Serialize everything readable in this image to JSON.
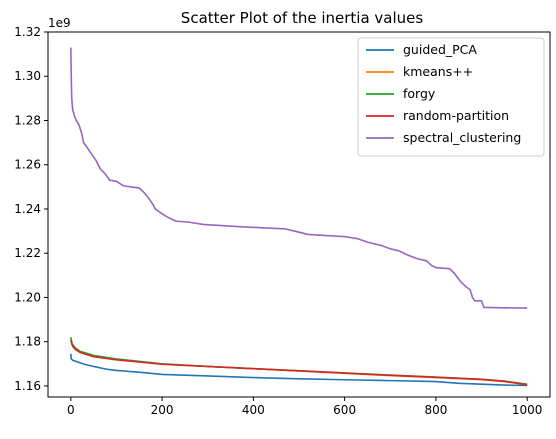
{
  "chart_data": {
    "type": "line",
    "title": "Scatter Plot of the inertia values",
    "xlabel": "",
    "ylabel": "",
    "y_offset_label": "1e9",
    "xlim": [
      -50,
      1050
    ],
    "ylim": [
      1.155,
      1.32
    ],
    "x_ticks": [
      0,
      200,
      400,
      600,
      800,
      1000
    ],
    "y_ticks": [
      1.16,
      1.18,
      1.2,
      1.22,
      1.24,
      1.26,
      1.28,
      1.3,
      1.32
    ],
    "y_tick_labels": [
      "1.16",
      "1.18",
      "1.20",
      "1.22",
      "1.24",
      "1.26",
      "1.28",
      "1.30",
      "1.32"
    ],
    "grid": false,
    "legend_position": "upper right",
    "series": [
      {
        "name": "guided_PCA",
        "color": "#1f77b4",
        "points": [
          [
            0,
            1.1745
          ],
          [
            1,
            1.1722
          ],
          [
            5,
            1.1715
          ],
          [
            10,
            1.1712
          ],
          [
            20,
            1.1705
          ],
          [
            30,
            1.1698
          ],
          [
            50,
            1.1688
          ],
          [
            80,
            1.1675
          ],
          [
            100,
            1.167
          ],
          [
            150,
            1.1662
          ],
          [
            200,
            1.1652
          ],
          [
            300,
            1.1645
          ],
          [
            400,
            1.1638
          ],
          [
            500,
            1.1632
          ],
          [
            600,
            1.1628
          ],
          [
            700,
            1.1624
          ],
          [
            800,
            1.162
          ],
          [
            850,
            1.1612
          ],
          [
            900,
            1.1608
          ],
          [
            950,
            1.1604
          ],
          [
            1000,
            1.1602
          ]
        ]
      },
      {
        "name": "kmeans++",
        "color": "#ff7f0e",
        "points": [
          [
            0,
            1.181
          ],
          [
            5,
            1.1775
          ],
          [
            10,
            1.1765
          ],
          [
            20,
            1.1752
          ],
          [
            50,
            1.1735
          ],
          [
            100,
            1.172
          ],
          [
            200,
            1.1698
          ],
          [
            300,
            1.1688
          ],
          [
            400,
            1.1678
          ],
          [
            500,
            1.1668
          ],
          [
            600,
            1.1657
          ],
          [
            700,
            1.1647
          ],
          [
            800,
            1.1638
          ],
          [
            900,
            1.1628
          ],
          [
            950,
            1.162
          ],
          [
            1000,
            1.1606
          ]
        ]
      },
      {
        "name": "forgy",
        "color": "#2ca02c",
        "points": [
          [
            0,
            1.182
          ],
          [
            3,
            1.179
          ],
          [
            10,
            1.1772
          ],
          [
            20,
            1.1757
          ],
          [
            50,
            1.1738
          ],
          [
            100,
            1.1722
          ],
          [
            200,
            1.17
          ],
          [
            300,
            1.1688
          ],
          [
            400,
            1.1678
          ],
          [
            500,
            1.1669
          ],
          [
            600,
            1.1659
          ],
          [
            700,
            1.1649
          ],
          [
            800,
            1.164
          ],
          [
            900,
            1.163
          ],
          [
            950,
            1.1622
          ],
          [
            1000,
            1.1608
          ]
        ]
      },
      {
        "name": "random-partition",
        "color": "#d62728",
        "points": [
          [
            0,
            1.1805
          ],
          [
            3,
            1.1785
          ],
          [
            10,
            1.1765
          ],
          [
            20,
            1.1752
          ],
          [
            50,
            1.1732
          ],
          [
            100,
            1.1718
          ],
          [
            200,
            1.1698
          ],
          [
            300,
            1.1688
          ],
          [
            400,
            1.1678
          ],
          [
            500,
            1.1668
          ],
          [
            600,
            1.1658
          ],
          [
            700,
            1.1648
          ],
          [
            800,
            1.1639
          ],
          [
            900,
            1.163
          ],
          [
            950,
            1.1621
          ],
          [
            1000,
            1.1605
          ]
        ]
      },
      {
        "name": "spectral_clustering",
        "color": "#9467bd",
        "points": [
          [
            0,
            1.313
          ],
          [
            1,
            1.3
          ],
          [
            2,
            1.29
          ],
          [
            4,
            1.285
          ],
          [
            8,
            1.282
          ],
          [
            12,
            1.28
          ],
          [
            18,
            1.278
          ],
          [
            24,
            1.274
          ],
          [
            28,
            1.27
          ],
          [
            35,
            1.268
          ],
          [
            45,
            1.265
          ],
          [
            55,
            1.262
          ],
          [
            65,
            1.258
          ],
          [
            75,
            1.256
          ],
          [
            85,
            1.253
          ],
          [
            100,
            1.2525
          ],
          [
            115,
            1.2505
          ],
          [
            130,
            1.25
          ],
          [
            150,
            1.2495
          ],
          [
            160,
            1.2475
          ],
          [
            170,
            1.245
          ],
          [
            180,
            1.242
          ],
          [
            185,
            1.24
          ],
          [
            195,
            1.2385
          ],
          [
            210,
            1.2365
          ],
          [
            230,
            1.2345
          ],
          [
            260,
            1.234
          ],
          [
            290,
            1.233
          ],
          [
            330,
            1.2325
          ],
          [
            370,
            1.232
          ],
          [
            420,
            1.2315
          ],
          [
            470,
            1.231
          ],
          [
            500,
            1.2295
          ],
          [
            520,
            1.2285
          ],
          [
            560,
            1.228
          ],
          [
            600,
            1.2275
          ],
          [
            630,
            1.2265
          ],
          [
            650,
            1.225
          ],
          [
            680,
            1.2235
          ],
          [
            700,
            1.222
          ],
          [
            720,
            1.221
          ],
          [
            740,
            1.219
          ],
          [
            760,
            1.2175
          ],
          [
            780,
            1.2165
          ],
          [
            790,
            1.2145
          ],
          [
            800,
            1.2135
          ],
          [
            830,
            1.213
          ],
          [
            840,
            1.211
          ],
          [
            855,
            1.207
          ],
          [
            865,
            1.205
          ],
          [
            875,
            1.2035
          ],
          [
            880,
            1.2
          ],
          [
            885,
            1.1985
          ],
          [
            900,
            1.1985
          ],
          [
            905,
            1.1955
          ],
          [
            950,
            1.1953
          ],
          [
            1000,
            1.1952
          ]
        ]
      }
    ]
  }
}
